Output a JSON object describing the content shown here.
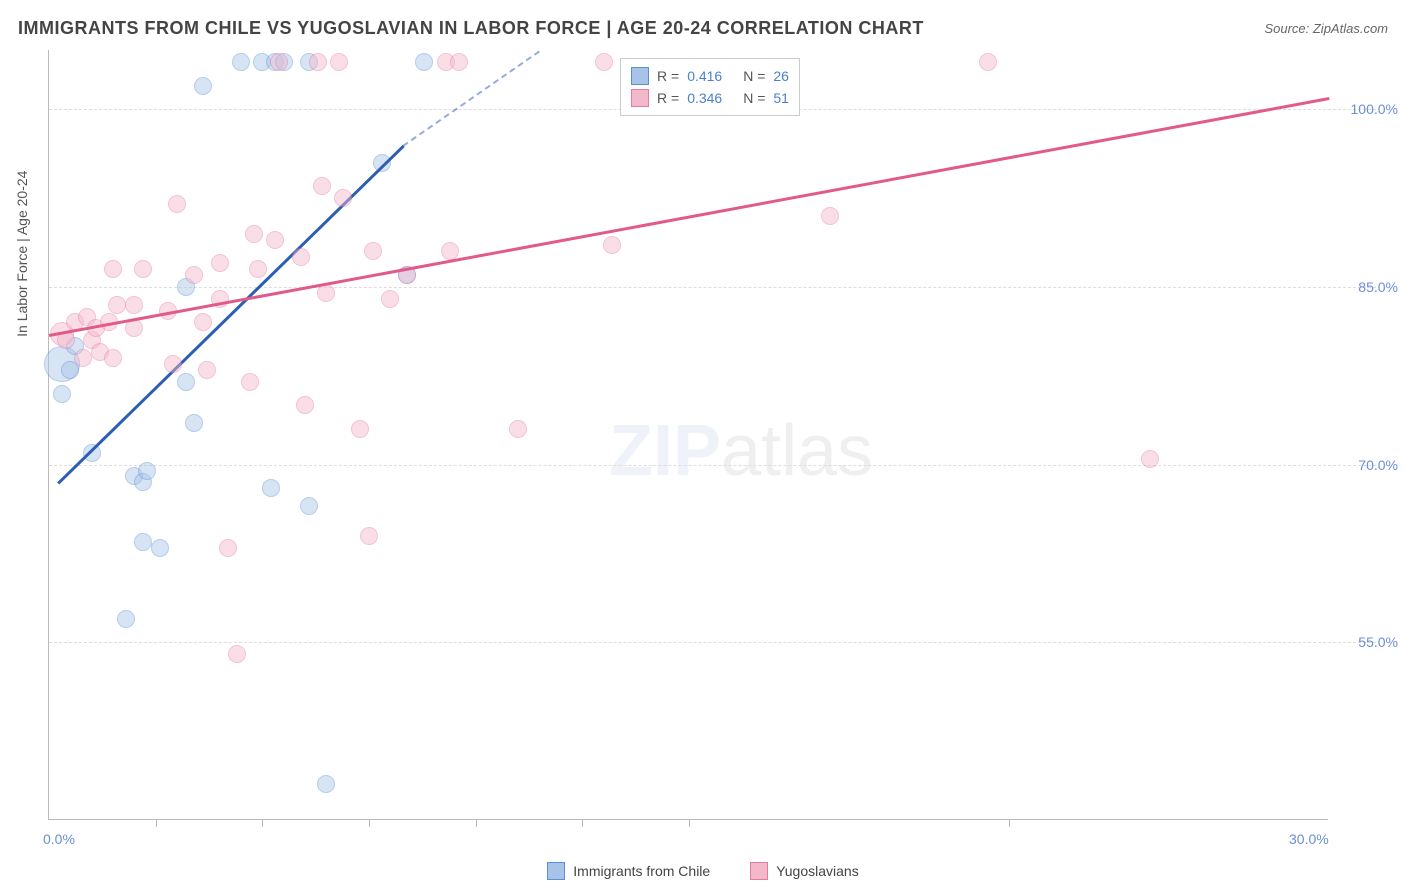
{
  "title": "IMMIGRANTS FROM CHILE VS YUGOSLAVIAN IN LABOR FORCE | AGE 20-24 CORRELATION CHART",
  "source": "Source: ZipAtlas.com",
  "y_axis_title": "In Labor Force | Age 20-24",
  "watermark_bold": "ZIP",
  "watermark_thin": "atlas",
  "chart": {
    "type": "scatter",
    "xlim": [
      0,
      30
    ],
    "ylim": [
      40,
      105
    ],
    "x_ticks_visible": [
      0,
      30
    ],
    "x_tick_labels": [
      "0.0%",
      "30.0%"
    ],
    "x_minor_ticks": [
      2.5,
      5,
      7.5,
      10,
      12.5,
      15,
      22.5
    ],
    "y_grid": [
      55,
      70,
      85,
      100
    ],
    "y_tick_labels": [
      "55.0%",
      "70.0%",
      "85.0%",
      "100.0%"
    ],
    "background_color": "#ffffff",
    "grid_color": "#dddddd",
    "axis_color": "#bbbbbb",
    "label_color": "#6a8fd8",
    "point_radius_default": 9,
    "point_opacity": 0.45,
    "series": [
      {
        "name": "Immigrants from Chile",
        "color_fill": "#a7c4e8",
        "color_stroke": "#5b8fd6",
        "trend_color": "#2c5fb3",
        "R": 0.416,
        "N": 26,
        "trend": {
          "x1": 0.2,
          "y1": 68.5,
          "x2": 8.3,
          "y2": 97
        },
        "trend_dash": {
          "x1": 8.3,
          "y1": 97,
          "x2": 11.5,
          "y2": 105
        },
        "points": [
          {
            "x": 0.3,
            "y": 78.5,
            "r": 18
          },
          {
            "x": 0.5,
            "y": 78
          },
          {
            "x": 0.3,
            "y": 76
          },
          {
            "x": 0.6,
            "y": 80
          },
          {
            "x": 1.0,
            "y": 71
          },
          {
            "x": 1.8,
            "y": 57
          },
          {
            "x": 2.0,
            "y": 69
          },
          {
            "x": 2.2,
            "y": 68.5
          },
          {
            "x": 2.3,
            "y": 69.5
          },
          {
            "x": 2.2,
            "y": 63.5
          },
          {
            "x": 2.6,
            "y": 63
          },
          {
            "x": 3.2,
            "y": 85
          },
          {
            "x": 3.2,
            "y": 77
          },
          {
            "x": 3.4,
            "y": 73.5
          },
          {
            "x": 3.6,
            "y": 102
          },
          {
            "x": 4.5,
            "y": 104
          },
          {
            "x": 5.0,
            "y": 104
          },
          {
            "x": 5.3,
            "y": 104
          },
          {
            "x": 5.5,
            "y": 104
          },
          {
            "x": 5.2,
            "y": 68
          },
          {
            "x": 6.1,
            "y": 66.5
          },
          {
            "x": 6.1,
            "y": 104
          },
          {
            "x": 6.5,
            "y": 43
          },
          {
            "x": 7.8,
            "y": 95.5
          },
          {
            "x": 8.8,
            "y": 104
          },
          {
            "x": 8.4,
            "y": 86
          }
        ]
      },
      {
        "name": "Yugoslavians",
        "color_fill": "#f4b8cb",
        "color_stroke": "#e77aa2",
        "trend_color": "#e15a8b",
        "R": 0.346,
        "N": 51,
        "trend": {
          "x1": 0,
          "y1": 81,
          "x2": 30,
          "y2": 101
        },
        "points": [
          {
            "x": 0.3,
            "y": 81,
            "r": 12
          },
          {
            "x": 0.4,
            "y": 80.5
          },
          {
            "x": 0.6,
            "y": 82
          },
          {
            "x": 0.8,
            "y": 79
          },
          {
            "x": 0.9,
            "y": 82.5
          },
          {
            "x": 1.0,
            "y": 80.5
          },
          {
            "x": 1.1,
            "y": 81.5
          },
          {
            "x": 1.2,
            "y": 79.5
          },
          {
            "x": 1.4,
            "y": 82
          },
          {
            "x": 1.5,
            "y": 86.5
          },
          {
            "x": 1.5,
            "y": 79
          },
          {
            "x": 1.6,
            "y": 83.5
          },
          {
            "x": 2.0,
            "y": 83.5
          },
          {
            "x": 2.0,
            "y": 81.5
          },
          {
            "x": 2.2,
            "y": 86.5
          },
          {
            "x": 2.8,
            "y": 83
          },
          {
            "x": 2.9,
            "y": 78.5
          },
          {
            "x": 3.0,
            "y": 92
          },
          {
            "x": 3.4,
            "y": 86
          },
          {
            "x": 3.6,
            "y": 82
          },
          {
            "x": 3.7,
            "y": 78
          },
          {
            "x": 4.0,
            "y": 87
          },
          {
            "x": 4.0,
            "y": 84
          },
          {
            "x": 4.2,
            "y": 63
          },
          {
            "x": 4.4,
            "y": 54
          },
          {
            "x": 4.7,
            "y": 77
          },
          {
            "x": 4.8,
            "y": 89.5
          },
          {
            "x": 4.9,
            "y": 86.5
          },
          {
            "x": 5.3,
            "y": 89
          },
          {
            "x": 5.4,
            "y": 104
          },
          {
            "x": 5.9,
            "y": 87.5
          },
          {
            "x": 6.0,
            "y": 75
          },
          {
            "x": 6.3,
            "y": 104
          },
          {
            "x": 6.4,
            "y": 93.5
          },
          {
            "x": 6.5,
            "y": 84.5
          },
          {
            "x": 6.8,
            "y": 104
          },
          {
            "x": 6.9,
            "y": 92.5
          },
          {
            "x": 7.3,
            "y": 73
          },
          {
            "x": 7.5,
            "y": 64
          },
          {
            "x": 7.6,
            "y": 88
          },
          {
            "x": 8.0,
            "y": 84
          },
          {
            "x": 8.4,
            "y": 86
          },
          {
            "x": 9.3,
            "y": 104
          },
          {
            "x": 9.6,
            "y": 104
          },
          {
            "x": 9.4,
            "y": 88
          },
          {
            "x": 11.0,
            "y": 73
          },
          {
            "x": 13.0,
            "y": 104
          },
          {
            "x": 13.2,
            "y": 88.5
          },
          {
            "x": 18.3,
            "y": 91
          },
          {
            "x": 22.0,
            "y": 104
          },
          {
            "x": 25.8,
            "y": 70.5
          }
        ]
      }
    ]
  },
  "stats_box": {
    "rows": [
      {
        "swatch_fill": "#a7c4e8",
        "swatch_stroke": "#5b8fd6",
        "R_label": "R =",
        "R_val": "0.416",
        "N_label": "N =",
        "N_val": "26"
      },
      {
        "swatch_fill": "#f4b8cb",
        "swatch_stroke": "#e77aa2",
        "R_label": "R =",
        "R_val": "0.346",
        "N_label": "N =",
        "N_val": "51"
      }
    ],
    "val_color": "#4a7fd0"
  },
  "bottom_legend": [
    {
      "swatch_fill": "#a7c4e8",
      "swatch_stroke": "#5b8fd6",
      "label": "Immigrants from Chile"
    },
    {
      "swatch_fill": "#f4b8cb",
      "swatch_stroke": "#e77aa2",
      "label": "Yugoslavians"
    }
  ]
}
